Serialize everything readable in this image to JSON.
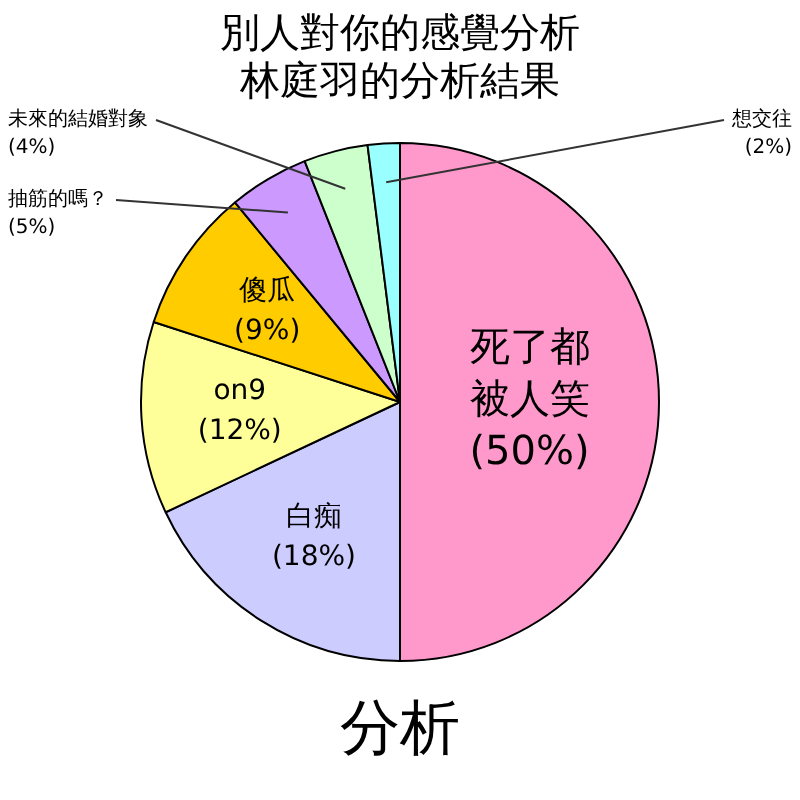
{
  "chart_data": {
    "type": "pie",
    "title": "別人對你的感覺分析",
    "subtitle": "林庭羽的分析結果",
    "categories": [
      "死了都被人笑",
      "白痴",
      "on9",
      "傻瓜",
      "抽筋的嗎？",
      "未來的結婚對象",
      "想交往"
    ],
    "values": [
      50,
      18,
      12,
      9,
      5,
      4,
      2
    ],
    "value_labels": [
      "(50%)",
      "(18%)",
      "(12%)",
      "(9%)",
      "(5%)",
      "(4%)",
      "(2%)"
    ],
    "colors": [
      "#ff99cc",
      "#ccccff",
      "#ffff99",
      "#ffcc00",
      "#cc99ff",
      "#ccffcc",
      "#99ffff"
    ],
    "annotations": [
      "分析"
    ],
    "legend": false
  }
}
